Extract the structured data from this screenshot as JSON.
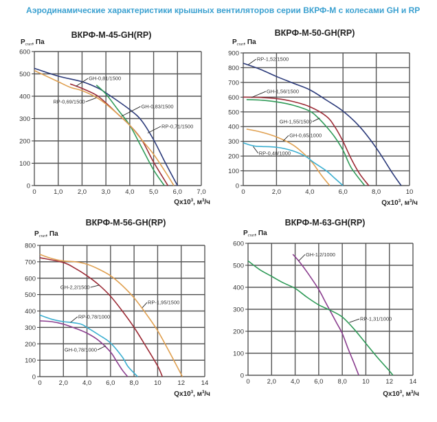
{
  "page": {
    "title": "Аэродинамические характеристики крышных вентиляторов серии ВКРФ-М с колесами GH и RP"
  },
  "colors": {
    "title": "#3aa0d0",
    "navy": "#2b3a7a",
    "red": "#9c2a35",
    "green": "#2e9a57",
    "orange": "#e0a050",
    "cyan": "#3aaed0",
    "purple": "#8a3d8e",
    "grid": "#555555"
  },
  "chart_data": [
    {
      "type": "line",
      "title": "ВКРФ-М-45-GH(RP)",
      "ylabel": {
        "main": "P",
        "sub": "стат",
        "unit": ", Па"
      },
      "xlabel": {
        "main": "Qx10",
        "sup": "3",
        "unit": ", м",
        "sup2": "3",
        "tail": "/ч"
      },
      "xlim": [
        0,
        7
      ],
      "ylim": [
        0,
        600
      ],
      "grid": true,
      "xticks": [
        0,
        1,
        2,
        3,
        4,
        5,
        6,
        7
      ],
      "xtick_labels": [
        "0",
        "1,0",
        "2,0",
        "3,0",
        "4,0",
        "5,0",
        "6,0",
        "7,0"
      ],
      "yticks": [
        0,
        100,
        200,
        300,
        400,
        500,
        600
      ],
      "ytick_labels": [
        "0",
        "100",
        "200",
        "300",
        "400",
        "500",
        "600"
      ],
      "series": [
        {
          "name": "RP-0,71/1500",
          "color": "navy",
          "x": [
            0,
            1,
            2,
            2.6,
            3,
            4,
            4.5,
            5,
            5.5,
            6
          ],
          "y": [
            525,
            490,
            465,
            440,
            415,
            340,
            290,
            205,
            100,
            0
          ],
          "label_at": [
            5.3,
            265
          ],
          "anchor": [
            4.75,
            235
          ],
          "align": "start"
        },
        {
          "name": "GH-0,81/1500",
          "color": "red",
          "x": [
            1.5,
            2,
            2.6,
            3,
            3.5,
            4,
            4.5,
            5,
            5.6
          ],
          "y": [
            455,
            435,
            405,
            370,
            320,
            270,
            205,
            105,
            0
          ],
          "label_at": [
            2.25,
            480
          ],
          "anchor": [
            1.75,
            445
          ],
          "align": "start"
        },
        {
          "name": "GH-0,83/1500",
          "color": "green",
          "x": [
            2.6,
            3,
            3.5,
            4,
            4.5,
            5,
            5.45
          ],
          "y": [
            450,
            410,
            340,
            270,
            170,
            70,
            0
          ],
          "label_at": [
            4.45,
            354
          ],
          "anchor": [
            3.65,
            310
          ],
          "align": "start"
        },
        {
          "name": "RP-0,69/1500",
          "color": "orange",
          "x": [
            0,
            1,
            1.5,
            2,
            2.6,
            3,
            3.5,
            4,
            4.5,
            5,
            5.5,
            5.85
          ],
          "y": [
            515,
            465,
            440,
            425,
            395,
            365,
            320,
            270,
            205,
            140,
            60,
            0
          ],
          "label_at": [
            2.15,
            375
          ],
          "anchor": [
            2.6,
            393
          ],
          "align": "end"
        }
      ]
    },
    {
      "type": "line",
      "title": "ВКРФ-М-50-GH(RP)",
      "ylabel": {
        "main": "P",
        "sub": "стат",
        "unit": ", Па"
      },
      "xlabel": {
        "main": "Qx10",
        "sup": "3",
        "unit": ", м",
        "sup2": "3",
        "tail": "/ч"
      },
      "xlim": [
        0,
        10
      ],
      "ylim": [
        0,
        900
      ],
      "grid": true,
      "xticks": [
        0,
        2,
        4,
        6,
        8,
        10
      ],
      "xtick_labels": [
        "0",
        "2,0",
        "4,0",
        "6,0",
        "8,0",
        "10"
      ],
      "yticks": [
        0,
        100,
        200,
        300,
        400,
        500,
        600,
        700,
        800,
        900
      ],
      "ytick_labels": [
        "0",
        "100",
        "200",
        "300",
        "400",
        "500",
        "600",
        "700",
        "800",
        "900"
      ],
      "series": [
        {
          "name": "RP-1,52/1500",
          "color": "navy",
          "x": [
            0,
            1,
            2,
            3,
            4,
            5,
            6,
            7,
            8,
            9,
            9.5
          ],
          "y": [
            830,
            790,
            740,
            695,
            650,
            580,
            505,
            400,
            255,
            80,
            0
          ],
          "label_at": [
            0.78,
            858
          ],
          "anchor": [
            0.3,
            820
          ],
          "align": "start"
        },
        {
          "name": "GH-1,56/1500",
          "color": "red",
          "x": [
            0,
            1,
            2,
            3,
            4,
            5,
            5.5,
            6,
            6.5,
            7,
            7.55
          ],
          "y": [
            600,
            598,
            590,
            570,
            535,
            470,
            400,
            300,
            180,
            80,
            0
          ],
          "label_at": [
            1.36,
            639
          ],
          "anchor": [
            0.5,
            598
          ],
          "align": "start"
        },
        {
          "name": "GH-1,55/1500",
          "color": "green",
          "x": [
            0.2,
            1,
            2,
            3,
            4,
            4.5,
            5,
            5.5,
            6,
            6.5,
            7.3
          ],
          "y": [
            583,
            580,
            568,
            545,
            505,
            460,
            400,
            330,
            240,
            120,
            0
          ],
          "label_at": [
            4.17,
            434
          ],
          "anchor": [
            4.6,
            458
          ],
          "align": "end"
        },
        {
          "name": "GH-0,65/1000",
          "color": "orange",
          "x": [
            0.2,
            1,
            2,
            3,
            3.8,
            4.2,
            4.7,
            5.2
          ],
          "y": [
            383,
            365,
            330,
            275,
            200,
            150,
            70,
            0
          ],
          "label_at": [
            2.73,
            340
          ],
          "anchor": [
            2.4,
            302
          ],
          "align": "start"
        },
        {
          "name": "RP-0,48/1000",
          "color": "cyan",
          "x": [
            0,
            0.7,
            2,
            3,
            3.8,
            4.2,
            5,
            5.5,
            6
          ],
          "y": [
            290,
            268,
            260,
            235,
            195,
            160,
            100,
            50,
            0
          ],
          "label_at": [
            0.9,
            219
          ],
          "anchor": [
            0.6,
            265
          ],
          "align": "start"
        }
      ]
    },
    {
      "type": "line",
      "title": "ВКРФ-М-56-GH(RP)",
      "ylabel": {
        "main": "P",
        "sub": "стат",
        "unit": ", Па"
      },
      "xlabel": {
        "main": "Qx10",
        "sup": "3",
        "unit": ", м",
        "sup2": "3",
        "tail": "/ч"
      },
      "xlim": [
        0,
        14
      ],
      "ylim": [
        0,
        800
      ],
      "grid": true,
      "xticks": [
        0,
        2,
        4,
        6,
        8,
        10,
        12,
        14
      ],
      "xtick_labels": [
        "0",
        "2,0",
        "4,0",
        "6,0",
        "8,0",
        "10",
        "12",
        "14"
      ],
      "yticks": [
        0,
        100,
        200,
        300,
        400,
        500,
        600,
        700,
        800
      ],
      "ytick_labels": [
        "0",
        "100",
        "200",
        "300",
        "400",
        "500",
        "600",
        "700",
        "800"
      ],
      "series": [
        {
          "name": "RP-1,95/1500",
          "color": "orange",
          "x": [
            0,
            1,
            2,
            3,
            4,
            5,
            6,
            7,
            8,
            9,
            10,
            11,
            12.1
          ],
          "y": [
            745,
            720,
            705,
            700,
            685,
            655,
            615,
            555,
            480,
            385,
            280,
            150,
            0
          ],
          "label_at": [
            9.1,
            452
          ],
          "anchor": [
            8.7,
            420
          ],
          "align": "start"
        },
        {
          "name": "GH-2,2/1500",
          "color": "red",
          "x": [
            0,
            2,
            3,
            4,
            5,
            6,
            7,
            8,
            9,
            10,
            10.4
          ],
          "y": [
            725,
            695,
            660,
            615,
            560,
            490,
            400,
            300,
            185,
            65,
            0
          ],
          "label_at": [
            4.3,
            544
          ],
          "anchor": [
            5.05,
            558
          ],
          "align": "end"
        },
        {
          "name": "RP-0,78/1000",
          "color": "cyan",
          "x": [
            0,
            1,
            2,
            2.7,
            3.5,
            4,
            5,
            6,
            7,
            7.5,
            8.3
          ],
          "y": [
            375,
            350,
            335,
            330,
            320,
            300,
            255,
            205,
            120,
            60,
            0
          ],
          "label_at": [
            3.2,
            365
          ],
          "anchor": [
            2.6,
            330
          ],
          "align": "start"
        },
        {
          "name": "GH-0,78/1000",
          "color": "purple",
          "x": [
            0,
            1,
            2,
            3,
            4,
            5,
            6,
            6.5,
            7,
            7.45
          ],
          "y": [
            340,
            335,
            320,
            295,
            265,
            220,
            150,
            95,
            40,
            0
          ],
          "label_at": [
            4.9,
            163
          ],
          "anchor": [
            5.6,
            188
          ],
          "align": "end"
        }
      ]
    },
    {
      "type": "line",
      "title": "ВКРФ-М-63-GH(RP)",
      "ylabel": {
        "main": "P",
        "sub": "стат",
        "unit": ", Па"
      },
      "xlabel": {
        "main": "Qx10",
        "sup": "3",
        "unit": ", м",
        "sup2": "3",
        "tail": "/ч"
      },
      "xlim": [
        0,
        14
      ],
      "ylim": [
        0,
        600
      ],
      "grid": true,
      "xticks": [
        0,
        2,
        4,
        6,
        8,
        10,
        12,
        14
      ],
      "xtick_labels": [
        "0",
        "2,0",
        "4,0",
        "6,0",
        "8,0",
        "10",
        "12",
        "14"
      ],
      "yticks": [
        0,
        100,
        200,
        300,
        400,
        500,
        600
      ],
      "ytick_labels": [
        "0",
        "100",
        "200",
        "300",
        "400",
        "500",
        "600"
      ],
      "series": [
        {
          "name": "GH-1,2/1000",
          "color": "purple",
          "x": [
            3.8,
            4.3,
            5,
            6,
            6.5,
            7,
            7.5,
            8,
            8.5,
            9,
            9.4
          ],
          "y": [
            550,
            520,
            470,
            390,
            340,
            290,
            240,
            190,
            120,
            55,
            0
          ],
          "label_at": [
            4.84,
            549
          ],
          "anchor": [
            4.3,
            520
          ],
          "align": "start"
        },
        {
          "name": "RP-1,31/1000",
          "color": "green",
          "x": [
            0,
            1,
            2,
            3,
            4,
            5,
            6,
            7,
            8,
            9,
            10,
            11,
            12,
            12.3
          ],
          "y": [
            520,
            480,
            450,
            420,
            395,
            355,
            320,
            295,
            265,
            210,
            145,
            80,
            20,
            0
          ],
          "label_at": [
            9.45,
            256
          ],
          "anchor": [
            8.6,
            240
          ],
          "align": "start"
        }
      ]
    }
  ]
}
